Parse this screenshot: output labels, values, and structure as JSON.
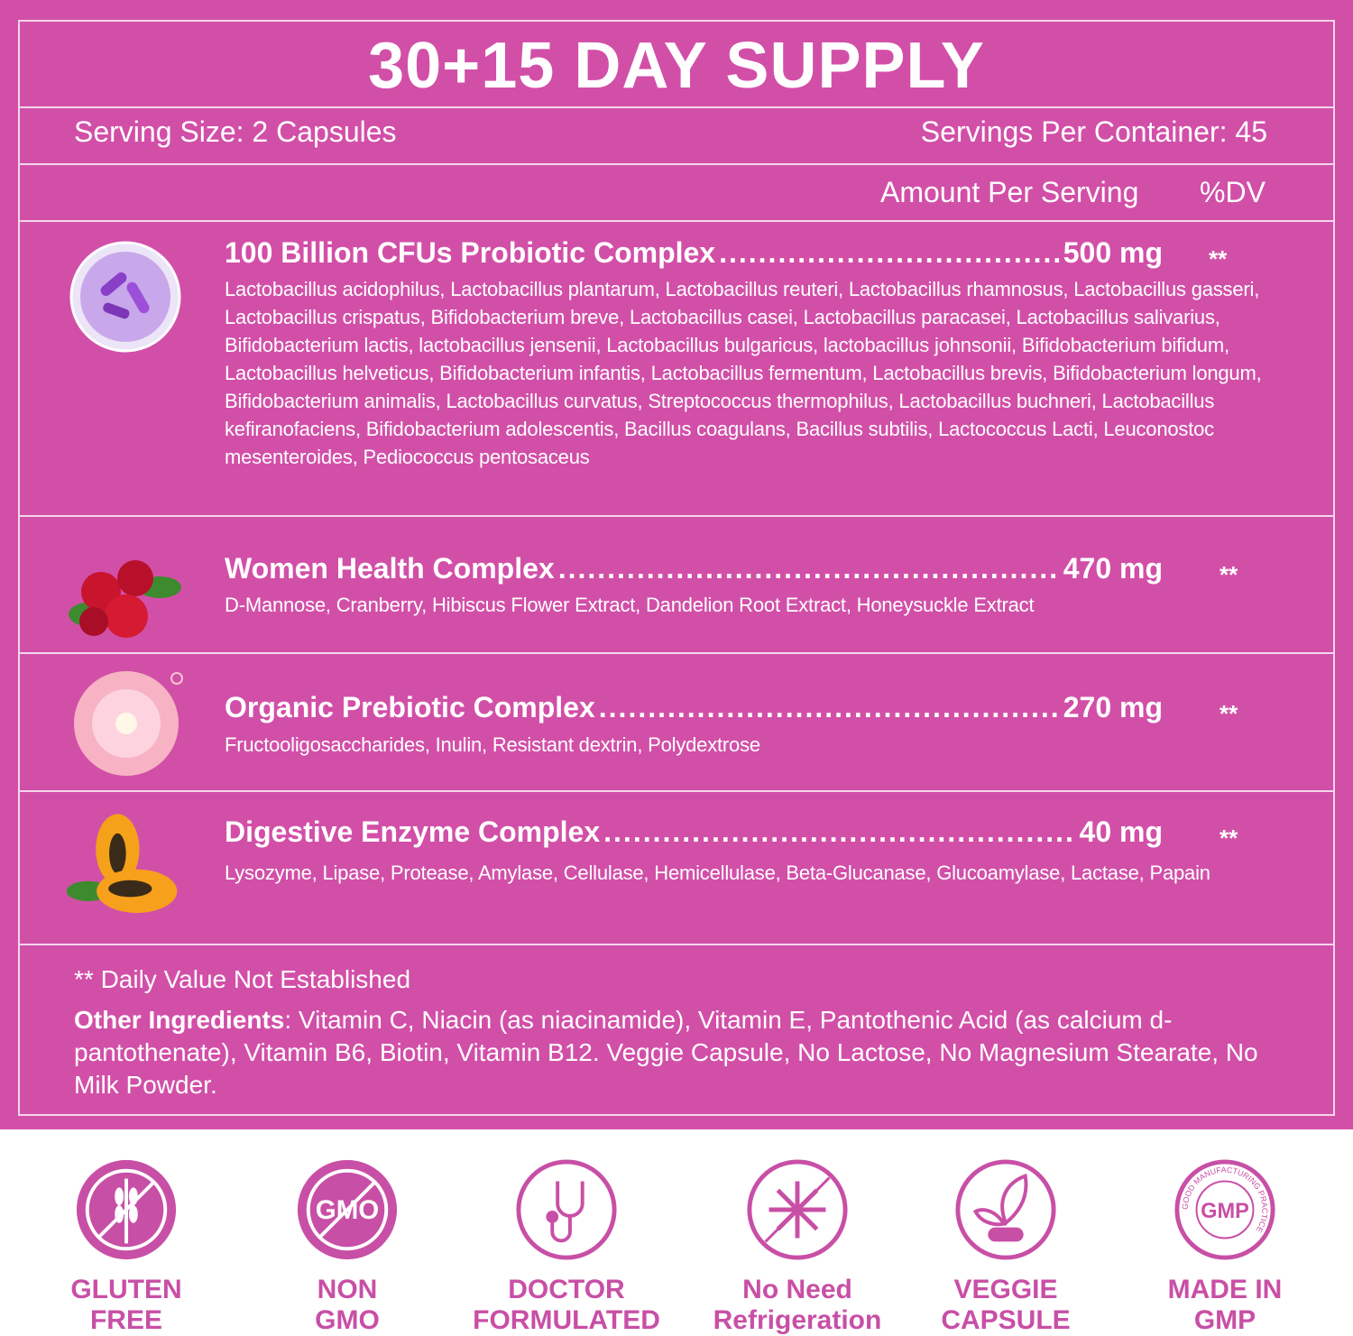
{
  "title": "30+15 DAY SUPPLY",
  "serving_size": "Serving Size: 2 Capsules",
  "servings_per_container": "Servings Per Container: 45",
  "amount_per_serving": "Amount Per Serving",
  "dv_header": "%DV",
  "ingredients": [
    {
      "name": "100 Billion CFUs Probiotic Complex",
      "amount": "500 mg",
      "dv": "**",
      "icon": "bacteria-capsule-icon",
      "description": "Lactobacillus acidophilus, Lactobacillus plantarum, Lactobacillus reuteri, Lactobacillus rhamnosus, Lactobacillus gasseri, Lactobacillus crispatus, Bifidobacterium breve, Lactobacillus casei, Lactobacillus paracasei, Lactobacillus salivarius, Bifidobacterium lactis, lactobacillus jensenii, Lactobacillus bulgaricus, lactobacillus johnsonii, Bifidobacterium bifidum, Lactobacillus helveticus, Bifidobacterium infantis, Lactobacillus fermentum, Lactobacillus brevis, Bifidobacterium longum, Bifidobacterium animalis, Lactobacillus curvatus, Streptococcus thermophilus, Lactobacillus buchneri, Lactobacillus kefiranofaciens, Bifidobacterium adolescentis, Bacillus coagulans, Bacillus subtilis, Lactococcus Lacti, Leuconostoc mesenteroides, Pediococcus pentosaceus"
    },
    {
      "name": "Women Health Complex",
      "amount": "470 mg",
      "dv": "**",
      "icon": "cranberry-icon",
      "description": "D-Mannose, Cranberry, Hibiscus Flower Extract, Dandelion Root Extract, Honeysuckle Extract"
    },
    {
      "name": "Organic Prebiotic Complex",
      "amount": "270 mg",
      "dv": "**",
      "icon": "prebiotic-bubble-icon",
      "description": "Fructooligosaccharides, Inulin, Resistant dextrin, Polydextrose"
    },
    {
      "name": "Digestive Enzyme Complex",
      "amount": "40 mg",
      "dv": "**",
      "icon": "papaya-icon",
      "description": "Lysozyme, Lipase, Protease, Amylase, Cellulase, Hemicellulase, Beta-Glucanase, Glucoamylase, Lactase, Papain"
    }
  ],
  "footnote": "** Daily Value Not Established",
  "other_ingredients_label": "Other Ingredients",
  "other_ingredients": ":  Vitamin C, Niacin (as niacinamide), Vitamin E, Pantothenic Acid (as calcium d-pantothenate), Vitamin B6, Biotin, Vitamin B12. Veggie Capsule, No Lactose, No Magnesium Stearate, No Milk Powder.",
  "badges": [
    {
      "line1": "GLUTEN",
      "line2": "FREE",
      "icon": "wheat-crossed-icon"
    },
    {
      "line1": "NON",
      "line2": "GMO",
      "icon": "gmo-crossed-icon"
    },
    {
      "line1": "DOCTOR",
      "line2": "FORMULATED",
      "icon": "stethoscope-icon"
    },
    {
      "line1": "No Need",
      "line2": "Refrigeration",
      "icon": "snowflake-crossed-icon"
    },
    {
      "line1": "VEGGIE",
      "line2": "CAPSULE",
      "icon": "leaf-capsule-icon"
    },
    {
      "line1": "MADE IN",
      "line2": "GMP",
      "icon": "gmp-seal-icon",
      "seal_text": "GMP",
      "seal_ring": "GOOD MANUFACTURING PRACTICE"
    }
  ],
  "colors": {
    "panel": "#d24fa8",
    "badge": "#c84fa6",
    "text": "#ffffff"
  }
}
